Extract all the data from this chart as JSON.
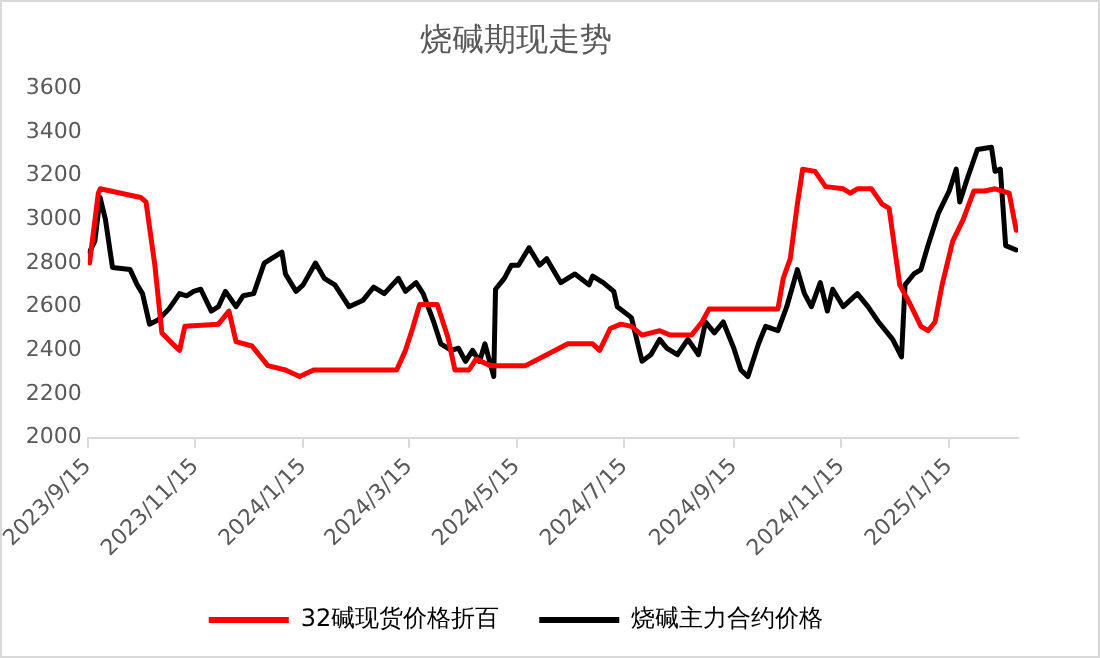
{
  "chart_data": {
    "type": "line",
    "title": "烧碱期现走势",
    "ylim": [
      2000,
      3600
    ],
    "yticks": [
      2000,
      2200,
      2400,
      2600,
      2800,
      3000,
      3200,
      3400,
      3600
    ],
    "xlim": [
      "2023-09-15",
      "2025-02-23"
    ],
    "xticks": [
      {
        "value": "2023-09-15",
        "label": "2023/9/15"
      },
      {
        "value": "2023-11-15",
        "label": "2023/11/15"
      },
      {
        "value": "2024-01-15",
        "label": "2024/1/15"
      },
      {
        "value": "2024-03-15",
        "label": "2024/3/15"
      },
      {
        "value": "2024-05-15",
        "label": "2024/5/15"
      },
      {
        "value": "2024-07-15",
        "label": "2024/7/15"
      },
      {
        "value": "2024-09-15",
        "label": "2024/9/15"
      },
      {
        "value": "2024-11-15",
        "label": "2024/11/15"
      },
      {
        "value": "2025-01-15",
        "label": "2025/1/15"
      }
    ],
    "grid": false,
    "legend": "bottom",
    "marker": "none",
    "line_style": "solid",
    "series": [
      {
        "name": "32碱现货价格折百",
        "color": "#ff0000",
        "x": [
          "2023-09-16",
          "2023-09-21",
          "2023-09-22",
          "2023-10-15",
          "2023-10-18",
          "2023-10-23",
          "2023-10-27",
          "2023-11-02",
          "2023-11-06",
          "2023-11-09",
          "2023-11-28",
          "2023-12-04",
          "2023-12-08",
          "2023-12-17",
          "2023-12-26",
          "2024-01-05",
          "2024-01-13",
          "2024-01-21",
          "2024-03-08",
          "2024-03-13",
          "2024-03-17",
          "2024-03-21",
          "2024-03-31",
          "2024-04-06",
          "2024-04-10",
          "2024-04-18",
          "2024-04-22",
          "2024-04-30",
          "2024-05-20",
          "2024-06-01",
          "2024-06-13",
          "2024-06-27",
          "2024-07-01",
          "2024-07-07",
          "2024-07-13",
          "2024-07-19",
          "2024-07-25",
          "2024-08-04",
          "2024-08-10",
          "2024-08-22",
          "2024-08-28",
          "2024-09-01",
          "2024-10-10",
          "2024-10-13",
          "2024-10-17",
          "2024-10-21",
          "2024-10-24",
          "2024-10-31",
          "2024-11-06",
          "2024-11-16",
          "2024-11-20",
          "2024-11-24",
          "2024-12-02",
          "2024-12-08",
          "2024-12-12",
          "2024-12-18",
          "2024-12-24",
          "2024-12-30",
          "2025-01-03",
          "2025-01-07",
          "2025-01-11",
          "2025-01-17",
          "2025-01-23",
          "2025-01-29",
          "2025-02-04",
          "2025-02-10",
          "2025-02-18",
          "2025-02-22"
        ],
        "values": [
          2800,
          3120,
          3140,
          3100,
          3080,
          2790,
          2480,
          2430,
          2400,
          2510,
          2520,
          2580,
          2440,
          2420,
          2330,
          2310,
          2280,
          2310,
          2310,
          2400,
          2500,
          2610,
          2610,
          2460,
          2310,
          2310,
          2360,
          2330,
          2330,
          2380,
          2430,
          2430,
          2400,
          2500,
          2520,
          2510,
          2470,
          2490,
          2470,
          2470,
          2530,
          2590,
          2590,
          2730,
          2820,
          3070,
          3230,
          3220,
          3150,
          3140,
          3120,
          3140,
          3140,
          3070,
          3050,
          2700,
          2610,
          2510,
          2490,
          2530,
          2700,
          2900,
          3000,
          3130,
          3130,
          3140,
          3120,
          2950
        ]
      },
      {
        "name": "烧碱主力合约价格",
        "color": "#000000",
        "x": [
          "2023-09-16",
          "2023-09-19",
          "2023-09-22",
          "2023-09-25",
          "2023-09-29",
          "2023-10-09",
          "2023-10-13",
          "2023-10-16",
          "2023-10-20",
          "2023-10-25",
          "2023-10-31",
          "2023-11-06",
          "2023-11-10",
          "2023-11-14",
          "2023-11-18",
          "2023-11-24",
          "2023-11-28",
          "2023-12-02",
          "2023-12-08",
          "2023-12-12",
          "2023-12-18",
          "2023-12-24",
          "2023-12-28",
          "2024-01-03",
          "2024-01-05",
          "2024-01-11",
          "2024-01-15",
          "2024-01-22",
          "2024-01-27",
          "2024-02-02",
          "2024-02-10",
          "2024-02-18",
          "2024-02-24",
          "2024-03-01",
          "2024-03-09",
          "2024-03-13",
          "2024-03-19",
          "2024-03-23",
          "2024-03-29",
          "2024-04-02",
          "2024-04-08",
          "2024-04-12",
          "2024-04-16",
          "2024-04-20",
          "2024-04-24",
          "2024-04-27",
          "2024-05-02",
          "2024-05-03",
          "2024-05-08",
          "2024-05-12",
          "2024-05-16",
          "2024-05-22",
          "2024-05-28",
          "2024-06-01",
          "2024-06-09",
          "2024-06-17",
          "2024-06-25",
          "2024-06-27",
          "2024-07-03",
          "2024-07-09",
          "2024-07-11",
          "2024-07-19",
          "2024-07-25",
          "2024-07-30",
          "2024-08-04",
          "2024-08-08",
          "2024-08-14",
          "2024-08-20",
          "2024-08-26",
          "2024-08-30",
          "2024-09-04",
          "2024-09-09",
          "2024-09-15",
          "2024-09-19",
          "2024-09-23",
          "2024-09-29",
          "2024-10-03",
          "2024-10-10",
          "2024-10-15",
          "2024-10-21",
          "2024-10-25",
          "2024-10-29",
          "2024-11-03",
          "2024-11-07",
          "2024-11-10",
          "2024-11-16",
          "2024-11-24",
          "2024-11-30",
          "2024-12-06",
          "2024-12-14",
          "2024-12-19",
          "2024-12-21",
          "2024-12-26",
          "2024-12-30",
          "2025-01-03",
          "2025-01-09",
          "2025-01-15",
          "2025-01-19",
          "2025-01-21",
          "2025-01-25",
          "2025-01-31",
          "2025-02-08",
          "2025-02-10",
          "2025-02-13",
          "2025-02-16",
          "2025-02-22"
        ],
        "values": [
          2850,
          2900,
          3100,
          3000,
          2780,
          2770,
          2700,
          2660,
          2520,
          2540,
          2590,
          2660,
          2650,
          2670,
          2680,
          2580,
          2600,
          2670,
          2600,
          2650,
          2660,
          2800,
          2820,
          2850,
          2750,
          2670,
          2700,
          2800,
          2730,
          2700,
          2600,
          2630,
          2690,
          2660,
          2730,
          2670,
          2710,
          2660,
          2530,
          2430,
          2400,
          2410,
          2350,
          2400,
          2350,
          2430,
          2280,
          2680,
          2730,
          2790,
          2790,
          2870,
          2790,
          2820,
          2710,
          2750,
          2700,
          2740,
          2710,
          2670,
          2600,
          2550,
          2350,
          2380,
          2450,
          2410,
          2380,
          2450,
          2380,
          2530,
          2480,
          2530,
          2410,
          2310,
          2280,
          2430,
          2510,
          2490,
          2600,
          2770,
          2660,
          2600,
          2710,
          2580,
          2680,
          2600,
          2660,
          2600,
          2530,
          2450,
          2370,
          2700,
          2750,
          2770,
          2880,
          3030,
          3130,
          3230,
          3080,
          3180,
          3320,
          3330,
          3220,
          3230,
          2880,
          2860
        ]
      }
    ]
  }
}
